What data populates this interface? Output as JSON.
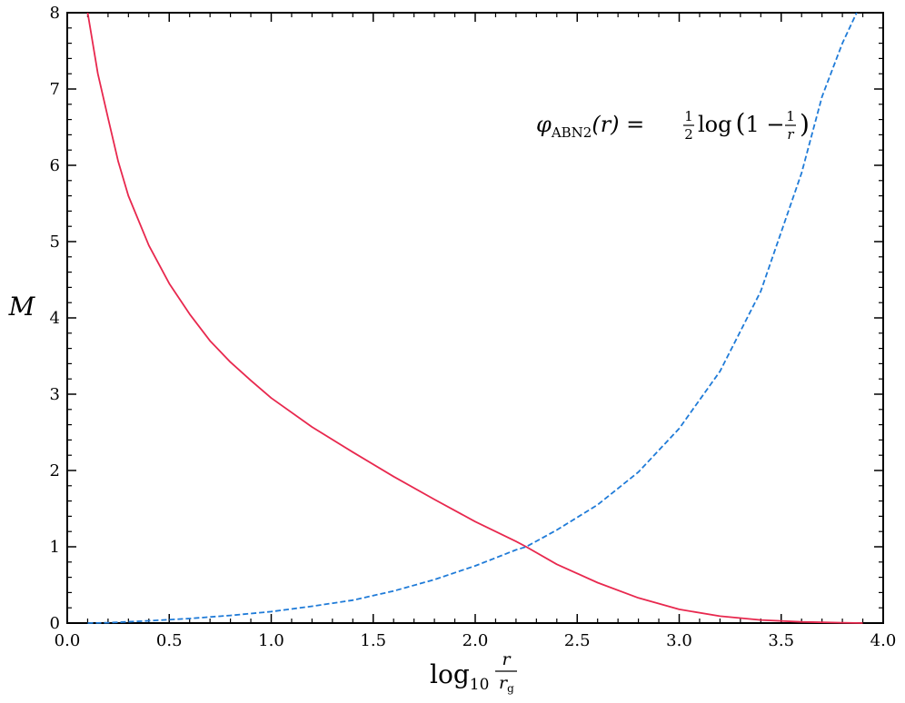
{
  "chart_data": {
    "type": "line",
    "xlabel": {
      "main": "log",
      "sub": "10",
      "frac_num": "r",
      "frac_den": "r",
      "frac_den_sub": "g"
    },
    "ylabel": "M",
    "xlim": [
      0.0,
      4.0
    ],
    "ylim": [
      0,
      8
    ],
    "x_ticks": [
      "0.0",
      "0.5",
      "1.0",
      "1.5",
      "2.0",
      "2.5",
      "3.0",
      "3.5",
      "4.0"
    ],
    "y_ticks": [
      "0",
      "1",
      "2",
      "3",
      "4",
      "5",
      "6",
      "7",
      "8"
    ],
    "annotation": {
      "phi": "φ",
      "sub": "ABN2",
      "arg": "(r) = ",
      "half_num": "1",
      "half_den": "2",
      "log_text": "log",
      "paren_open": "(",
      "one_minus": "1 − ",
      "inv_num": "1",
      "inv_den": "r",
      "paren_close": ")"
    },
    "series": [
      {
        "style": "solid",
        "color": "#e8284e",
        "x": [
          0.1,
          0.15,
          0.2,
          0.25,
          0.3,
          0.4,
          0.5,
          0.6,
          0.7,
          0.8,
          0.9,
          1.0,
          1.2,
          1.4,
          1.6,
          1.8,
          2.0,
          2.2,
          2.25,
          2.4,
          2.6,
          2.8,
          3.0,
          3.2,
          3.4,
          3.6,
          3.8,
          3.9
        ],
        "y": [
          8.0,
          7.2,
          6.62,
          6.05,
          5.6,
          4.95,
          4.45,
          4.05,
          3.7,
          3.42,
          3.18,
          2.95,
          2.57,
          2.24,
          1.92,
          1.62,
          1.33,
          1.07,
          1.0,
          0.77,
          0.53,
          0.33,
          0.18,
          0.09,
          0.04,
          0.015,
          0.005,
          0.0
        ]
      },
      {
        "style": "dashed",
        "color": "#1f7bd8",
        "x": [
          0.1,
          0.2,
          0.4,
          0.6,
          0.8,
          1.0,
          1.2,
          1.4,
          1.6,
          1.8,
          2.0,
          2.2,
          2.25,
          2.4,
          2.6,
          2.8,
          3.0,
          3.2,
          3.4,
          3.6,
          3.7,
          3.8,
          3.87
        ],
        "y": [
          0.0,
          0.005,
          0.03,
          0.06,
          0.1,
          0.15,
          0.22,
          0.3,
          0.42,
          0.57,
          0.75,
          0.96,
          1.0,
          1.22,
          1.55,
          1.98,
          2.55,
          3.3,
          4.35,
          5.9,
          6.9,
          7.6,
          8.0
        ]
      }
    ]
  }
}
